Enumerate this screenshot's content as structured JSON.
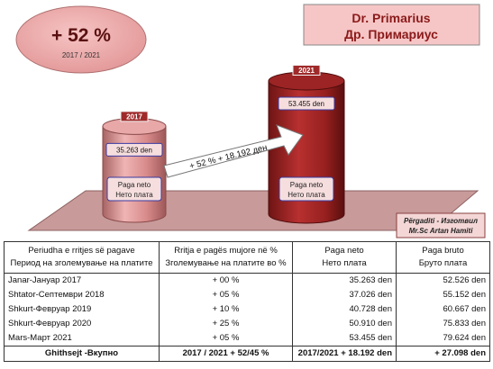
{
  "badge": {
    "percent": "+ 52 %",
    "years": "2017 / 2021"
  },
  "title": {
    "line1": "Dr. Primarius",
    "line2": "Др. Примариус"
  },
  "chart_data": {
    "type": "bar",
    "categories": [
      "2017",
      "2021"
    ],
    "values": [
      35263,
      53455
    ],
    "value_labels": [
      "35.263 den",
      "53.455 den"
    ],
    "bar_captions": [
      {
        "line1": "Paga neto",
        "line2": "Нето плата"
      },
      {
        "line1": "Paga neto",
        "line2": "Нето плата"
      }
    ],
    "arrow_label": "+ 52 %    + 18.192 ден"
  },
  "credit": {
    "line1": "Përgaditi - Изготвил",
    "line2": "Mr.Sc Artan Hamiti"
  },
  "table": {
    "headers": [
      {
        "line1": "Periudha e rritjes së pagave",
        "line2": "Период на зголемување на платите"
      },
      {
        "line1": "Rritja e pagës mujore në %",
        "line2": "Зголемување на платите во %"
      },
      {
        "line1": "Paga neto",
        "line2": "Нето плата"
      },
      {
        "line1": "Paga bruto",
        "line2": "Бруто плата"
      }
    ],
    "rows": [
      [
        "Janar-Јануар 2017",
        "+ 00 %",
        "35.263 den",
        "52.526 den"
      ],
      [
        "Shtator-Септември 2018",
        "+ 05 %",
        "37.026 den",
        "55.152 den"
      ],
      [
        "Shkurt-Февруар 2019",
        "+ 10 %",
        "40.728 den",
        "60.667 den"
      ],
      [
        "Shkurt-Февруар 2020",
        "+ 25 %",
        "50.910 den",
        "75.833 den"
      ],
      [
        "Mars-Март 2021",
        "+ 05 %",
        "53.455 den",
        "79.624 den"
      ]
    ],
    "total": [
      "Ghithsejt -Вкупно",
      "2017 / 2021   + 52/45 %",
      "2017/2021  + 18.192 den",
      "+ 27.098 den"
    ]
  }
}
